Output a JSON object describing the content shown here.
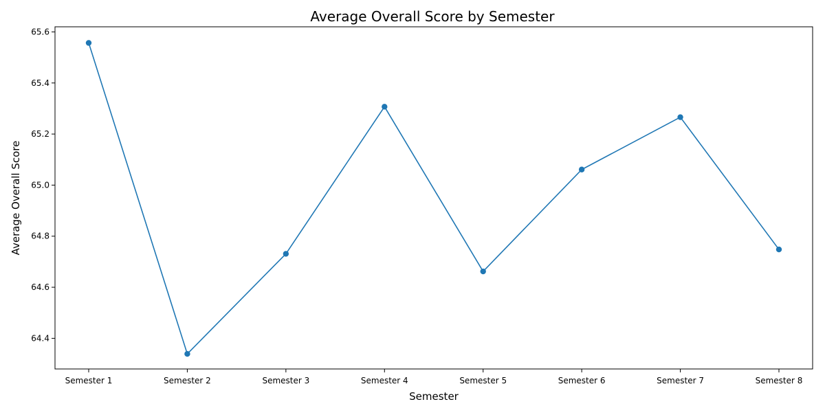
{
  "chart_data": {
    "type": "line",
    "title": "Average Overall Score by Semester",
    "xlabel": "Semester",
    "ylabel": "Average Overall Score",
    "categories": [
      "Semester 1",
      "Semester 2",
      "Semester 3",
      "Semester 4",
      "Semester 5",
      "Semester 6",
      "Semester 7",
      "Semester 8"
    ],
    "series": [
      {
        "values": [
          65.557,
          64.339,
          64.731,
          65.307,
          64.662,
          65.061,
          65.266,
          64.748
        ],
        "color": "#1f77b4",
        "marker": "circle"
      }
    ],
    "ylim": [
      64.28,
      65.62
    ],
    "yticks": [
      64.4,
      64.6,
      64.8,
      65.0,
      65.2,
      65.4,
      65.6
    ],
    "ytick_labels": [
      "64.4",
      "64.6",
      "64.8",
      "65.0",
      "65.2",
      "65.4",
      "65.6"
    ],
    "grid": false,
    "legend": "none"
  }
}
